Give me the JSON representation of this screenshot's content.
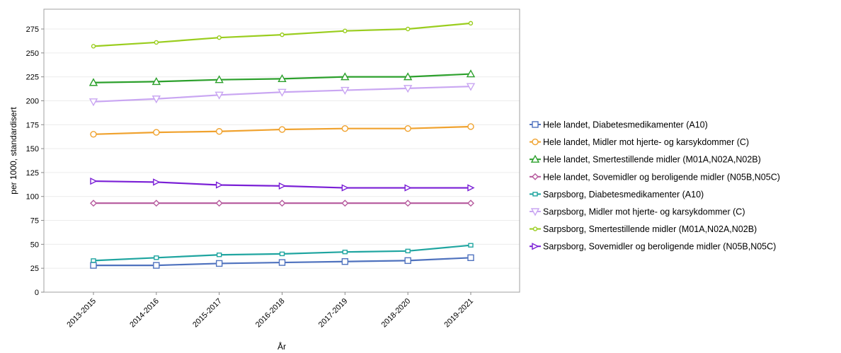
{
  "chart_data": {
    "type": "line",
    "xlabel": "År",
    "ylabel": "per 1000, standardisert",
    "ylim": [
      0,
      290
    ],
    "yticks": [
      0,
      25,
      50,
      75,
      100,
      125,
      150,
      175,
      200,
      225,
      250,
      275
    ],
    "grid": true,
    "legend_position": "right",
    "categories": [
      "2013-2015",
      "2014-2016",
      "2015-2017",
      "2016-2018",
      "2017-2019",
      "2018-2020",
      "2019-2021"
    ],
    "series": [
      {
        "name": "Hele landet, Diabetesmedikamenter (A10)",
        "color": "#4f72be",
        "marker": "square",
        "values": [
          28,
          28,
          30,
          31,
          32,
          33,
          36
        ]
      },
      {
        "name": "Hele landet, Midler mot hjerte- og karsykdommer (C)",
        "color": "#f0a22e",
        "marker": "circle",
        "values": [
          165,
          167,
          168,
          170,
          171,
          171,
          173
        ]
      },
      {
        "name": "Hele landet, Smertestillende midler (M01A,N02A,N02B)",
        "color": "#2ca02c",
        "marker": "triangle-up",
        "values": [
          219,
          220,
          222,
          223,
          225,
          225,
          228
        ]
      },
      {
        "name": "Hele landet, Sovemidler og beroligende midler (N05B,N05C)",
        "color": "#b5589c",
        "marker": "diamond",
        "values": [
          93,
          93,
          93,
          93,
          93,
          93,
          93
        ]
      },
      {
        "name": "Sarpsborg, Diabetesmedikamenter (A10)",
        "color": "#1fa5a0",
        "marker": "small-square",
        "values": [
          33,
          36,
          39,
          40,
          42,
          43,
          49
        ]
      },
      {
        "name": "Sarpsborg, Midler mot hjerte- og karsykdommer (C)",
        "color": "#c9a6f2",
        "marker": "triangle-down",
        "values": [
          199,
          202,
          206,
          209,
          211,
          213,
          215
        ]
      },
      {
        "name": "Sarpsborg, Smertestillende midler (M01A,N02A,N02B)",
        "color": "#9acd1e",
        "marker": "small-circle",
        "values": [
          257,
          261,
          266,
          269,
          273,
          275,
          281
        ]
      },
      {
        "name": "Sarpsborg, Sovemidler og beroligende midler (N05B,N05C)",
        "color": "#7a1fd6",
        "marker": "triangle-right",
        "values": [
          116,
          115,
          112,
          111,
          109,
          109,
          109
        ]
      }
    ]
  }
}
